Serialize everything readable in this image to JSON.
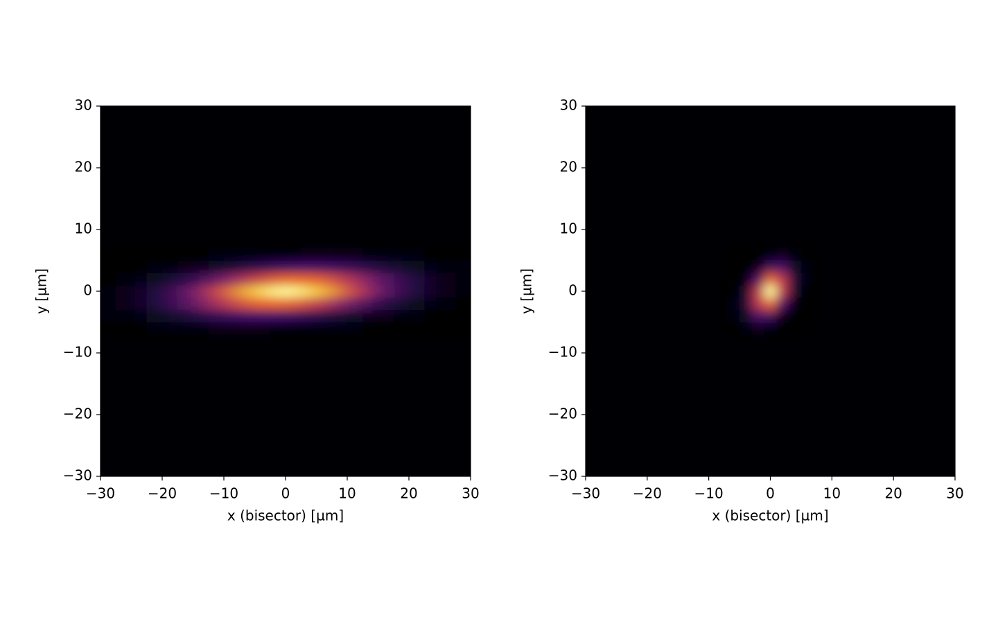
{
  "chart_data": [
    {
      "type": "heatmap",
      "colormap": "inferno",
      "xlabel": "x (bisector) [µm]",
      "ylabel": "y [µm]",
      "xlim": [
        -30,
        30
      ],
      "ylim": [
        -30,
        30
      ],
      "xticks": [
        {
          "value": -30,
          "label": "−30"
        },
        {
          "value": -20,
          "label": "−20"
        },
        {
          "value": -10,
          "label": "−10"
        },
        0,
        10,
        20,
        30
      ],
      "yticks": [
        {
          "value": -30,
          "label": "−30"
        },
        {
          "value": -20,
          "label": "−20"
        },
        {
          "value": -10,
          "label": "−10"
        },
        0,
        10,
        20,
        30
      ],
      "x": [
        -30,
        -25,
        -20,
        -15,
        -10,
        -5,
        0,
        5,
        10,
        15,
        20,
        25,
        30
      ],
      "y": [
        -6,
        -4,
        -2,
        0,
        2,
        4,
        6
      ],
      "z": [
        [
          0,
          0,
          0.01,
          0.02,
          0.03,
          0.03,
          0.02,
          0.02,
          0.01,
          0,
          0,
          0,
          0
        ],
        [
          0.01,
          0.02,
          0.06,
          0.11,
          0.17,
          0.2,
          0.19,
          0.14,
          0.07,
          0.03,
          0.01,
          0,
          0
        ],
        [
          0.01,
          0.04,
          0.13,
          0.27,
          0.48,
          0.64,
          0.66,
          0.52,
          0.32,
          0.15,
          0.06,
          0.01,
          0
        ],
        [
          0.01,
          0.03,
          0.13,
          0.3,
          0.59,
          0.87,
          1,
          0.87,
          0.59,
          0.3,
          0.13,
          0.03,
          0.01
        ],
        [
          0,
          0.01,
          0.06,
          0.15,
          0.32,
          0.52,
          0.66,
          0.64,
          0.48,
          0.27,
          0.13,
          0.04,
          0.01
        ],
        [
          0,
          0,
          0.01,
          0.03,
          0.07,
          0.14,
          0.19,
          0.2,
          0.17,
          0.11,
          0.06,
          0.02,
          0.01
        ],
        [
          0,
          0,
          0,
          0,
          0.01,
          0.02,
          0.02,
          0.03,
          0.03,
          0.02,
          0.01,
          0,
          0
        ]
      ]
    },
    {
      "type": "heatmap",
      "colormap": "inferno",
      "xlabel": "x (bisector) [µm]",
      "ylabel": "y [µm]",
      "xlim": [
        -30,
        30
      ],
      "ylim": [
        -30,
        30
      ],
      "xticks": [
        {
          "value": -30,
          "label": "−30"
        },
        {
          "value": -20,
          "label": "−20"
        },
        {
          "value": -10,
          "label": "−10"
        },
        0,
        10,
        20,
        30
      ],
      "yticks": [
        {
          "value": -30,
          "label": "−30"
        },
        {
          "value": -20,
          "label": "−20"
        },
        {
          "value": -10,
          "label": "−10"
        },
        0,
        10,
        20,
        30
      ],
      "x": [
        -6,
        -4,
        -2,
        0,
        2,
        4,
        6
      ],
      "y": [
        -6,
        -4,
        -2,
        0,
        2,
        4,
        6
      ],
      "z": [
        [
          0,
          0.02,
          0.03,
          0.02,
          0,
          0,
          0
        ],
        [
          0.01,
          0.06,
          0.2,
          0.18,
          0.04,
          0,
          0
        ],
        [
          0.01,
          0.1,
          0.5,
          0.65,
          0.22,
          0.02,
          0
        ],
        [
          0,
          0.07,
          0.51,
          1,
          0.51,
          0.07,
          0
        ],
        [
          0,
          0.02,
          0.22,
          0.65,
          0.5,
          0.1,
          0.01
        ],
        [
          0,
          0,
          0.04,
          0.18,
          0.2,
          0.06,
          0.01
        ],
        [
          0,
          0,
          0,
          0.02,
          0.03,
          0.02,
          0
        ]
      ]
    }
  ]
}
